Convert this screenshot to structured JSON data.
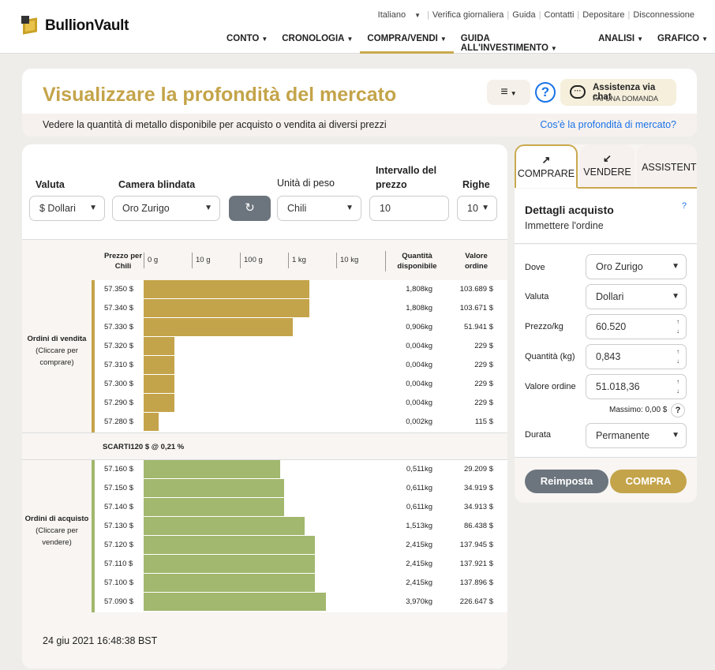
{
  "header": {
    "logo_text": "BullionVault",
    "top_links": [
      "Italiano",
      "Verifica giornaliera",
      "Guida",
      "Contatti",
      "Depositare",
      "Disconnessione"
    ],
    "main_nav": [
      "CONTO",
      "CRONOLOGIA",
      "COMPRA/VENDI",
      "GUIDA ALL'INVESTIMENTO",
      "ANALISI",
      "GRAFICO"
    ],
    "active_nav": "COMPRA/VENDI"
  },
  "title_card": {
    "title": "Visualizzare la profondità del mercato",
    "menu_icon": "≡",
    "help_icon": "?",
    "chat_title": "Assistenza via chat",
    "chat_sub": "FAI UNA DOMANDA",
    "subtitle": "Vedere la quantità di metallo disponibile per acquisto o vendita ai diversi prezzi",
    "subtitle_link": "Cos'è la profondità di mercato?"
  },
  "filters": {
    "currency_label": "Valuta",
    "currency_value": "$ Dollari",
    "vault_label": "Camera blindata",
    "vault_value": "Oro Zurigo",
    "weight_label": "Unità di peso",
    "weight_value": "Chili",
    "interval_label": "Intervallo del prezzo",
    "interval_value": "10",
    "rows_label": "Righe",
    "rows_value": "10",
    "refresh_icon": "↻"
  },
  "table": {
    "price_header": "Prezzo per Chili",
    "scale_ticks": [
      "0 g",
      "10 g",
      "100 g",
      "1 kg",
      "10 kg"
    ],
    "qty_header": "Quantità disponibile",
    "value_header": "Valore ordine",
    "sell_label_title": "Ordini di vendita",
    "sell_label_sub": "(Cliccare per comprare)",
    "buy_label_title": "Ordini di acquisto",
    "buy_label_sub": "(Cliccare per vendere)",
    "spread": "SCARTI120 $ @ 0,21 %",
    "sell_rows": [
      {
        "price": "57.350 $",
        "qty": "1,808kg",
        "value": "103.689 $",
        "fill": 0.6
      },
      {
        "price": "57.340 $",
        "qty": "1,808kg",
        "value": "103.671 $",
        "fill": 0.6
      },
      {
        "price": "57.330 $",
        "qty": "0,906kg",
        "value": "51.941 $",
        "fill": 0.541
      },
      {
        "price": "57.320 $",
        "qty": "0,004kg",
        "value": "229 $",
        "fill": 0.111
      },
      {
        "price": "57.310 $",
        "qty": "0,004kg",
        "value": "229 $",
        "fill": 0.111
      },
      {
        "price": "57.300 $",
        "qty": "0,004kg",
        "value": "229 $",
        "fill": 0.111
      },
      {
        "price": "57.290 $",
        "qty": "0,004kg",
        "value": "229 $",
        "fill": 0.111
      },
      {
        "price": "57.280 $",
        "qty": "0,002kg",
        "value": "115 $",
        "fill": 0.054
      }
    ],
    "buy_rows": [
      {
        "price": "57.160 $",
        "qty": "0,511kg",
        "value": "29.209 $",
        "fill": 0.494
      },
      {
        "price": "57.150 $",
        "qty": "0,611kg",
        "value": "34.919 $",
        "fill": 0.509
      },
      {
        "price": "57.140 $",
        "qty": "0,611kg",
        "value": "34.913 $",
        "fill": 0.509
      },
      {
        "price": "57.130 $",
        "qty": "1,513kg",
        "value": "86.438 $",
        "fill": 0.583
      },
      {
        "price": "57.120 $",
        "qty": "2,415kg",
        "value": "137.945 $",
        "fill": 0.62
      },
      {
        "price": "57.110 $",
        "qty": "2,415kg",
        "value": "137.921 $",
        "fill": 0.62
      },
      {
        "price": "57.100 $",
        "qty": "2,415kg",
        "value": "137.896 $",
        "fill": 0.62
      },
      {
        "price": "57.090 $",
        "qty": "3,970kg",
        "value": "226.647 $",
        "fill": 0.66
      }
    ],
    "timestamp": "24 giu 2021 16:48:38 BST"
  },
  "order": {
    "tab_buy": "COMPRARE",
    "tab_buy_icon": "↗",
    "tab_sell": "VENDERE",
    "tab_sell_icon": "↙",
    "tab_assist": "ASSISTENTE",
    "title": "Dettagli acquisto",
    "subtitle": "Immettere l'ordine",
    "help": "?",
    "where_label": "Dove",
    "where_value": "Oro Zurigo",
    "currency_label": "Valuta",
    "currency_value": "Dollari",
    "price_label": "Prezzo/kg",
    "price_value": "60.520",
    "qty_label": "Quantità (kg)",
    "qty_value": "0,843",
    "value_label": "Valore ordine",
    "value_value": "51.018,36",
    "max_label": "Massimo: 0,00 $",
    "duration_label": "Durata",
    "duration_value": "Permanente",
    "reset": "Reimposta",
    "buy": "COMPRA"
  },
  "colors": {
    "sell_bar": "#c4a44a",
    "buy_bar": "#a2b86e",
    "accent": "#c4a44a"
  }
}
